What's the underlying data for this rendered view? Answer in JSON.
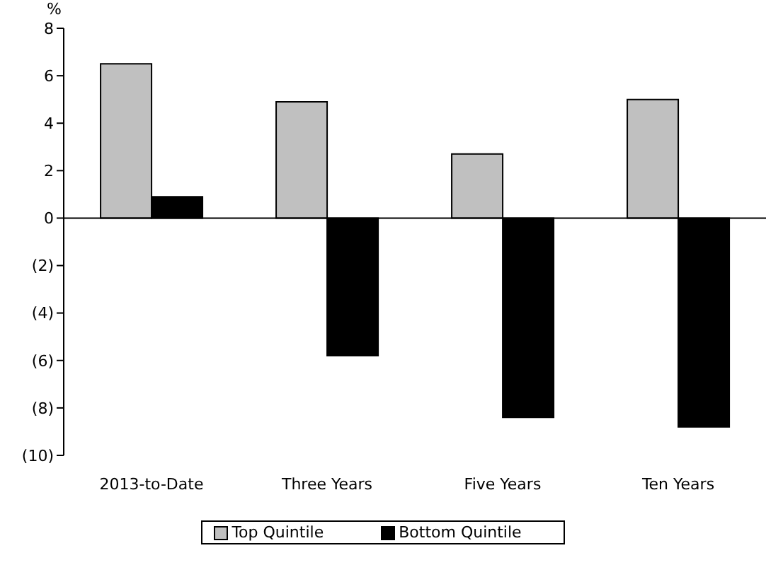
{
  "chart_data": {
    "type": "bar",
    "ylabel": "%",
    "categories": [
      "2013-to-Date",
      "Three Years",
      "Five Years",
      "Ten Years"
    ],
    "series": [
      {
        "name": "Top Quintile",
        "color": "#c0c0c0",
        "values": [
          6.5,
          4.9,
          2.7,
          5.0
        ]
      },
      {
        "name": "Bottom Quintile",
        "color": "#000000",
        "values": [
          0.9,
          -5.8,
          -8.4,
          -8.8
        ]
      }
    ],
    "ylim": [
      -10,
      8
    ],
    "yticks": [
      {
        "value": -10,
        "label": "(10)"
      },
      {
        "value": -8,
        "label": "(8)"
      },
      {
        "value": -6,
        "label": "(6)"
      },
      {
        "value": -4,
        "label": "(4)"
      },
      {
        "value": -2,
        "label": "(2)"
      },
      0,
      2,
      4,
      6,
      8
    ],
    "legend": "bottom"
  }
}
